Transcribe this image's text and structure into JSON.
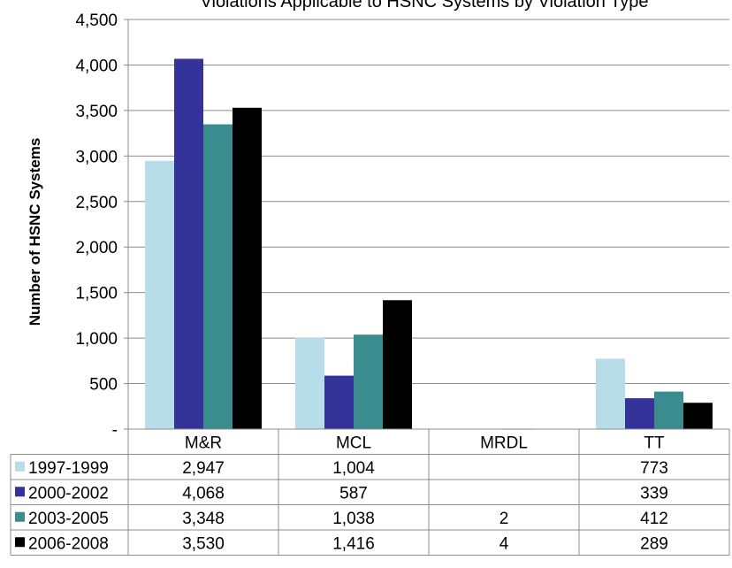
{
  "chart_data": {
    "type": "bar",
    "title": "Violations Applicable to HSNC Systems by Violation Type",
    "ylabel": "Number of HSNC Systems",
    "xlabel": "",
    "ylim": [
      0,
      4500
    ],
    "yticks": [
      0,
      500,
      1000,
      1500,
      2000,
      2500,
      3000,
      3500,
      4000,
      4500
    ],
    "ytick_labels": [
      "-",
      "500",
      "1,000",
      "1,500",
      "2,000",
      "2,500",
      "3,000",
      "3,500",
      "4,000",
      "4,500"
    ],
    "grid": true,
    "legend_position": "data-table",
    "categories": [
      "M&R",
      "MCL",
      "MRDL",
      "TT"
    ],
    "series": [
      {
        "name": "1997-1999",
        "color": "#b7dee8",
        "values": [
          2947,
          1004,
          null,
          773
        ],
        "labels": [
          "2,947",
          "1,004",
          "",
          "773"
        ]
      },
      {
        "name": "2000-2002",
        "color": "#333399",
        "values": [
          4068,
          587,
          null,
          339
        ],
        "labels": [
          "4,068",
          "587",
          "",
          "339"
        ]
      },
      {
        "name": "2003-2005",
        "color": "#3b8c8f",
        "values": [
          3348,
          1038,
          2,
          412
        ],
        "labels": [
          "3,348",
          "1,038",
          "2",
          "412"
        ]
      },
      {
        "name": "2006-2008",
        "color": "#000000",
        "values": [
          3530,
          1416,
          4,
          289
        ],
        "labels": [
          "3,530",
          "1,416",
          "4",
          "289"
        ]
      }
    ]
  }
}
